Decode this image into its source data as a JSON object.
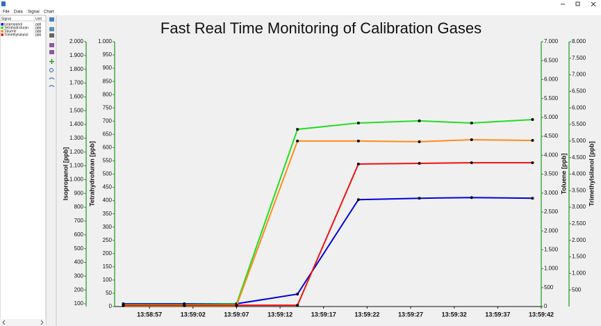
{
  "menu": [
    "File",
    "Data",
    "Signal",
    "Chart"
  ],
  "signal_table": {
    "headers": [
      "Signal",
      "Unit"
    ],
    "units": [
      "ppb",
      "ppb",
      "ppb",
      "ppb"
    ]
  },
  "chart_data": {
    "type": "line",
    "title": "Fast Real Time Monitoring of Calibration Gases",
    "x": [
      "13:58:54",
      "13:59:01",
      "13:59:07",
      "13:59:14",
      "13:59:21",
      "13:59:28",
      "13:59:34",
      "13:59:41"
    ],
    "xlim": [
      "13:58:53",
      "13:59:42"
    ],
    "xticks": [
      "13:58:57",
      "13:59:02",
      "13:59:07",
      "13:59:12",
      "13:59:17",
      "13:59:22",
      "13:59:27",
      "13:59:32",
      "13:59:37",
      "13:59:42"
    ],
    "ylabel": "Isopropanol [ppb]",
    "ylim": [
      80,
      2000
    ],
    "yticks": [
      100,
      200,
      300,
      400,
      500,
      600,
      700,
      800,
      900,
      {
        "value": 1000,
        "label": "1.000"
      },
      {
        "value": 1100,
        "label": "1.100"
      },
      {
        "value": 1200,
        "label": "1.200"
      },
      {
        "value": 1300,
        "label": "1.300"
      },
      {
        "value": 1400,
        "label": "1.400"
      },
      {
        "value": 1500,
        "label": "1.500"
      },
      {
        "value": 1600,
        "label": "1.600"
      },
      {
        "value": 1700,
        "label": "1.700"
      },
      {
        "value": 1800,
        "label": "1.800"
      },
      {
        "value": 1900,
        "label": "1.900"
      },
      {
        "value": 2000,
        "label": "2.000"
      }
    ],
    "y2label": "Tetrahydrofuran [ppb]",
    "y2lim": [
      0,
      1000
    ],
    "y2ticks": [
      0,
      50,
      100,
      150,
      200,
      250,
      300,
      350,
      400,
      450,
      500,
      550,
      600,
      650,
      700,
      750,
      800,
      850,
      900,
      950,
      {
        "value": 1000,
        "label": "1.000"
      }
    ],
    "y3label": "Toluene [ppb]",
    "y3lim": [
      0,
      7000
    ],
    "y3ticks": [
      0,
      500,
      {
        "value": 1000,
        "label": "1.000"
      },
      {
        "value": 1500,
        "label": "1.500"
      },
      {
        "value": 2000,
        "label": "2.000"
      },
      {
        "value": 2500,
        "label": "2.500"
      },
      {
        "value": 3000,
        "label": "3.000"
      },
      {
        "value": 3500,
        "label": "3.500"
      },
      {
        "value": 4000,
        "label": "4.000"
      },
      {
        "value": 4500,
        "label": "4.500"
      },
      {
        "value": 5000,
        "label": "5.000"
      },
      {
        "value": 5500,
        "label": "5.500"
      },
      {
        "value": 6000,
        "label": "6.000"
      },
      {
        "value": 6500,
        "label": "6.500"
      },
      {
        "value": 7000,
        "label": "7.000"
      }
    ],
    "y4label": "Trimethylsilanol [ppb]",
    "y4lim": [
      0,
      8000
    ],
    "y4ticks": [
      500,
      {
        "value": 1000,
        "label": "1.000"
      },
      {
        "value": 1500,
        "label": "1.500"
      },
      {
        "value": 2000,
        "label": "2.000"
      },
      {
        "value": 2500,
        "label": "2.500"
      },
      {
        "value": 3000,
        "label": "3.000"
      },
      {
        "value": 3500,
        "label": "3.500"
      },
      {
        "value": 4000,
        "label": "4.000"
      },
      {
        "value": 4500,
        "label": "4.500"
      },
      {
        "value": 5000,
        "label": "5.000"
      },
      {
        "value": 5500,
        "label": "5.500"
      },
      {
        "value": 6000,
        "label": "6.000"
      },
      {
        "value": 6500,
        "label": "6.500"
      },
      {
        "value": 7000,
        "label": "7.000"
      },
      {
        "value": 7500,
        "label": "7.500"
      },
      {
        "value": 8000,
        "label": "8.000"
      }
    ],
    "series": [
      {
        "name": "Isopropanol",
        "color": "#0000dd",
        "axis": "y",
        "values": [
          100,
          100,
          100,
          170,
          855,
          865,
          870,
          865
        ]
      },
      {
        "name": "Tetrahydrofuran",
        "color": "#22dd22",
        "axis": "y2",
        "values": [
          8,
          8,
          10,
          669,
          693,
          701,
          693,
          706
        ]
      },
      {
        "name": "Toluene",
        "color": "#ff8c1a",
        "axis": "y3",
        "values": [
          20,
          20,
          20,
          4375,
          4375,
          4356,
          4410,
          4390
        ]
      },
      {
        "name": "Trimethylsilanol",
        "color": "#ee1111",
        "axis": "y4",
        "values": [
          40,
          40,
          40,
          40,
          4305,
          4325,
          4345,
          4345
        ]
      }
    ]
  }
}
